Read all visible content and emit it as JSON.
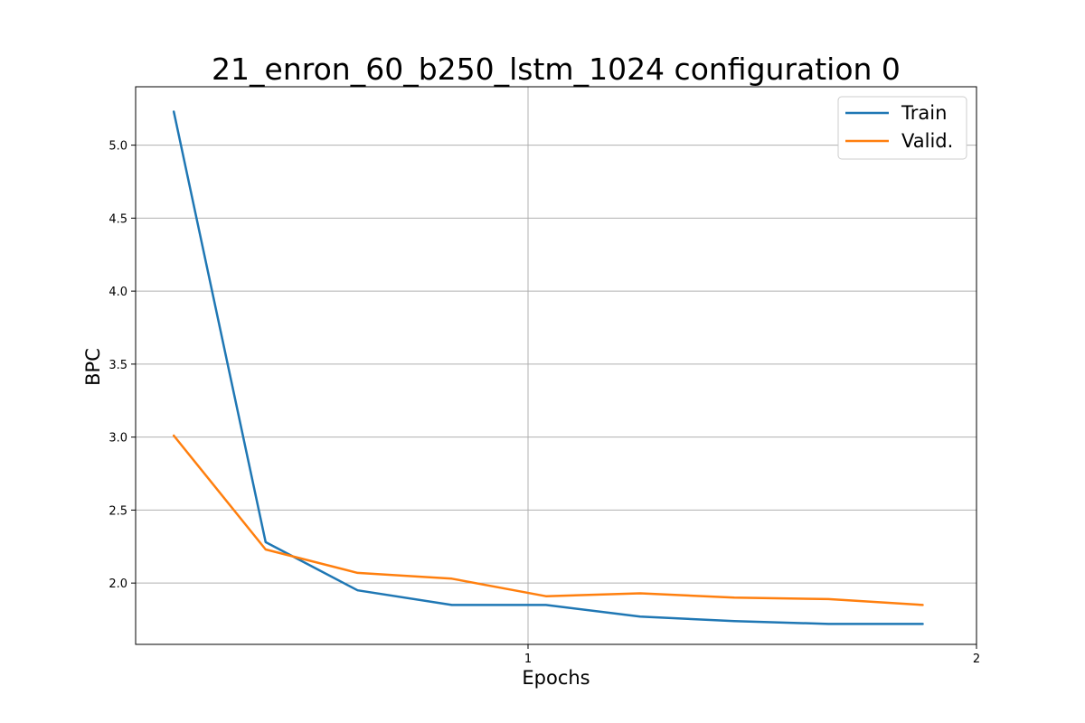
{
  "chart_data": {
    "type": "line",
    "title": "21_enron_60_b250_lstm_1024 configuration 0",
    "xlabel": "Epochs",
    "ylabel": "BPC",
    "xlim": [
      0.125,
      2
    ],
    "ylim": [
      1.58,
      5.4
    ],
    "xticks": [
      1,
      2
    ],
    "xtick_labels": [
      "1",
      "2"
    ],
    "yticks": [
      2.0,
      2.5,
      3.0,
      3.5,
      4.0,
      4.5,
      5.0
    ],
    "ytick_labels": [
      "2.0",
      "2.5",
      "3.0",
      "3.5",
      "4.0",
      "4.5",
      "5.0"
    ],
    "grid": true,
    "legend_position": "top-right",
    "series": [
      {
        "name": "Train",
        "color": "#1f77b4",
        "x": [
          0.21,
          0.415,
          0.62,
          0.83,
          1.04,
          1.25,
          1.46,
          1.67,
          1.88
        ],
        "y": [
          5.23,
          2.28,
          1.95,
          1.85,
          1.85,
          1.77,
          1.74,
          1.72,
          1.72
        ]
      },
      {
        "name": "Valid.",
        "color": "#ff7f0e",
        "x": [
          0.21,
          0.415,
          0.62,
          0.83,
          1.04,
          1.25,
          1.46,
          1.67,
          1.88
        ],
        "y": [
          3.01,
          2.23,
          2.07,
          2.03,
          1.91,
          1.93,
          1.9,
          1.89,
          1.85
        ]
      }
    ]
  }
}
